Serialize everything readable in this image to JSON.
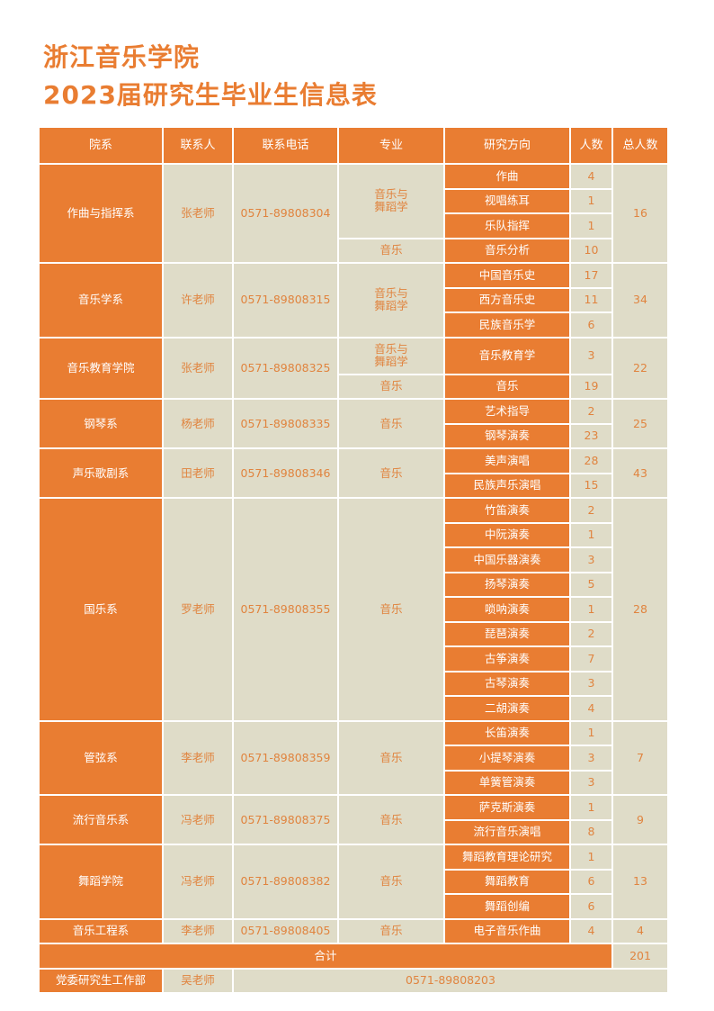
{
  "title": {
    "line1": "浙江音乐学院",
    "line2": "2023届研究生毕业生信息表"
  },
  "colors": {
    "accent": "#E97D32",
    "cell_bg": "#DFDCC8",
    "cell_text": "#E0843F"
  },
  "headers": [
    "院系",
    "联系人",
    "联系电话",
    "专业",
    "研究方向",
    "人数",
    "总人数"
  ],
  "groups": [
    {
      "dept": "作曲与指挥系",
      "contact": "张老师",
      "phone": "0571-89808304",
      "total": "16",
      "majors": [
        {
          "name": "音乐与\n舞蹈学",
          "dirs": [
            [
              "作曲",
              "4"
            ],
            [
              "视唱练耳",
              "1"
            ],
            [
              "乐队指挥",
              "1"
            ]
          ]
        },
        {
          "name": "音乐",
          "dirs": [
            [
              "音乐分析",
              "10"
            ]
          ]
        }
      ]
    },
    {
      "dept": "音乐学系",
      "contact": "许老师",
      "phone": "0571-89808315",
      "total": "34",
      "majors": [
        {
          "name": "音乐与\n舞蹈学",
          "dirs": [
            [
              "中国音乐史",
              "17"
            ],
            [
              "西方音乐史",
              "11"
            ],
            [
              "民族音乐学",
              "6"
            ]
          ]
        }
      ]
    },
    {
      "dept": "音乐教育学院",
      "contact": "张老师",
      "phone": "0571-89808325",
      "total": "22",
      "majors": [
        {
          "name": "音乐与\n舞蹈学",
          "tall": true,
          "dirs": [
            [
              "音乐教育学",
              "3"
            ]
          ]
        },
        {
          "name": "音乐",
          "dirs": [
            [
              "音乐",
              "19"
            ]
          ]
        }
      ]
    },
    {
      "dept": "钢琴系",
      "contact": "杨老师",
      "phone": "0571-89808335",
      "total": "25",
      "majors": [
        {
          "name": "音乐",
          "dirs": [
            [
              "艺术指导",
              "2"
            ],
            [
              "钢琴演奏",
              "23"
            ]
          ]
        }
      ]
    },
    {
      "dept": "声乐歌剧系",
      "contact": "田老师",
      "phone": "0571-89808346",
      "total": "43",
      "majors": [
        {
          "name": "音乐",
          "dirs": [
            [
              "美声演唱",
              "28"
            ],
            [
              "民族声乐演唱",
              "15"
            ]
          ]
        }
      ]
    },
    {
      "dept": "国乐系",
      "contact": "罗老师",
      "phone": "0571-89808355",
      "total": "28",
      "majors": [
        {
          "name": "音乐",
          "dirs": [
            [
              "竹笛演奏",
              "2"
            ],
            [
              "中阮演奏",
              "1"
            ],
            [
              "中国乐器演奏",
              "3"
            ],
            [
              "扬琴演奏",
              "5"
            ],
            [
              "唢呐演奏",
              "1"
            ],
            [
              "琵琶演奏",
              "2"
            ],
            [
              "古筝演奏",
              "7"
            ],
            [
              "古琴演奏",
              "3"
            ],
            [
              "二胡演奏",
              "4"
            ]
          ]
        }
      ]
    },
    {
      "dept": "管弦系",
      "contact": "李老师",
      "phone": "0571-89808359",
      "total": "7",
      "majors": [
        {
          "name": "音乐",
          "dirs": [
            [
              "长笛演奏",
              "1"
            ],
            [
              "小提琴演奏",
              "3"
            ],
            [
              "单簧管演奏",
              "3"
            ]
          ]
        }
      ]
    },
    {
      "dept": "流行音乐系",
      "contact": "冯老师",
      "phone": "0571-89808375",
      "total": "9",
      "majors": [
        {
          "name": "音乐",
          "dirs": [
            [
              "萨克斯演奏",
              "1"
            ],
            [
              "流行音乐演唱",
              "8"
            ]
          ]
        }
      ]
    },
    {
      "dept": "舞蹈学院",
      "contact": "冯老师",
      "phone": "0571-89808382",
      "total": "13",
      "majors": [
        {
          "name": "音乐",
          "dirs": [
            [
              "舞蹈教育理论研究",
              "1"
            ],
            [
              "舞蹈教育",
              "6"
            ],
            [
              "舞蹈创编",
              "6"
            ]
          ]
        }
      ]
    },
    {
      "dept": "音乐工程系",
      "contact": "李老师",
      "phone": "0571-89808405",
      "total": "4",
      "majors": [
        {
          "name": "音乐",
          "dirs": [
            [
              "电子音乐作曲",
              "4"
            ]
          ]
        }
      ]
    }
  ],
  "summary": {
    "label": "合计",
    "total": "201"
  },
  "office": {
    "name": "党委研究生工作部",
    "contact": "吴老师",
    "phone": "0571-89808203"
  }
}
